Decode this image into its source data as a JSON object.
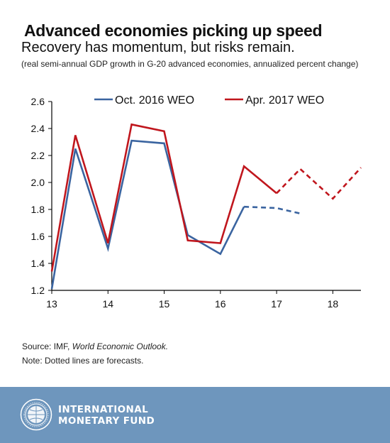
{
  "header": {
    "title": "Advanced economies picking up speed",
    "subtitle": "Recovery has momentum, but risks remain.",
    "note": "(real semi-annual GDP growth in G-20 advanced economies, annualized percent change)"
  },
  "chart_data": {
    "type": "line",
    "title": "Advanced economies picking up speed",
    "xlabel": "",
    "ylabel": "",
    "x_ticks": [
      "13",
      "14",
      "15",
      "16",
      "17",
      "18"
    ],
    "y_ticks": [
      "1.2",
      "1.4",
      "1.6",
      "1.8",
      "2.0",
      "2.2",
      "2.4",
      "2.6"
    ],
    "xlim": [
      13,
      18.5
    ],
    "ylim": [
      1.2,
      2.6
    ],
    "grid": false,
    "legend_position": "top",
    "series": [
      {
        "name": "Oct. 2016 WEO",
        "color": "#3a64a0",
        "points": [
          {
            "x": 13.0,
            "y": 1.21
          },
          {
            "x": 13.42,
            "y": 2.25
          },
          {
            "x": 14.0,
            "y": 1.51
          },
          {
            "x": 14.42,
            "y": 2.31
          },
          {
            "x": 15.0,
            "y": 2.29
          },
          {
            "x": 15.42,
            "y": 1.61
          },
          {
            "x": 16.0,
            "y": 1.47
          },
          {
            "x": 16.42,
            "y": 1.82
          },
          {
            "x": 17.0,
            "y": 1.81
          },
          {
            "x": 17.42,
            "y": 1.77
          }
        ],
        "forecast_from_x": 16.42
      },
      {
        "name": "Apr. 2017 WEO",
        "color": "#c0161d",
        "points": [
          {
            "x": 13.0,
            "y": 1.34
          },
          {
            "x": 13.42,
            "y": 2.35
          },
          {
            "x": 14.0,
            "y": 1.55
          },
          {
            "x": 14.42,
            "y": 2.43
          },
          {
            "x": 15.0,
            "y": 2.38
          },
          {
            "x": 15.42,
            "y": 1.57
          },
          {
            "x": 16.0,
            "y": 1.55
          },
          {
            "x": 16.42,
            "y": 2.12
          },
          {
            "x": 17.0,
            "y": 1.92
          },
          {
            "x": 17.42,
            "y": 2.1
          },
          {
            "x": 18.0,
            "y": 1.88
          },
          {
            "x": 18.5,
            "y": 2.11
          }
        ],
        "forecast_from_x": 17.0
      }
    ]
  },
  "footer": {
    "source_prefix": "Source: IMF, ",
    "source_italic": "World Economic Outlook.",
    "note": "Note: Dotted lines are forecasts.",
    "org_line1": "INTERNATIONAL",
    "org_line2": "MONETARY FUND",
    "bg_color": "#6e96bd"
  }
}
